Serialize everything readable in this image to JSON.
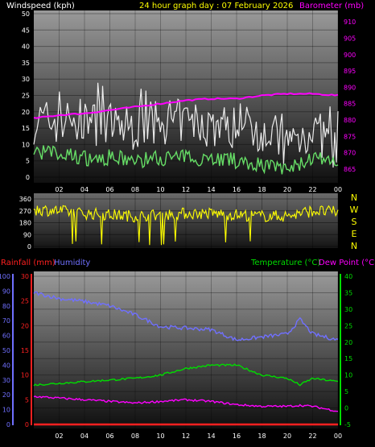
{
  "header": {
    "wind_label": "Windspeed (kph)",
    "title": "24 hour graph day : 07 February 2026",
    "baro_label": "Barometer (mb)"
  },
  "colors": {
    "wind_label": "#ffffff",
    "title": "#ffff00",
    "baro": "#ff00ff",
    "wind_gust": "#ffffff",
    "wind_avg": "#66dd66",
    "direction": "#ffff00",
    "rain": "#ff2020",
    "humidity": "#7070ff",
    "temperature": "#00dd00",
    "dewpoint": "#ff00ff",
    "axis_text": "#ffffff"
  },
  "bottom_header": {
    "rain_label": "Rainfall (mm)",
    "humidity_label": "Humidity",
    "temp_label": "Temperature (°C)",
    "dew_label": "Dew Point (°C)"
  },
  "compass": [
    "N",
    "W",
    "S",
    "E",
    "N"
  ],
  "chart_data": [
    {
      "type": "line",
      "panel": "wind-barometer",
      "x_ticks": [
        "02",
        "04",
        "06",
        "08",
        "10",
        "12",
        "14",
        "16",
        "18",
        "20",
        "22",
        "00"
      ],
      "y_left_ticks": [
        "0",
        "5",
        "10",
        "15",
        "20",
        "25",
        "30",
        "35",
        "40",
        "45",
        "50"
      ],
      "y_left_range": [
        0,
        50
      ],
      "y_right_ticks": [
        "865",
        "870",
        "875",
        "880",
        "885",
        "890",
        "895",
        "900",
        "905",
        "910"
      ],
      "y_right_range": [
        862.5,
        912.5
      ],
      "x": [
        0,
        2,
        4,
        6,
        8,
        10,
        12,
        14,
        16,
        18,
        20,
        22,
        24
      ],
      "series": [
        {
          "key": "barometer",
          "values": [
            880.5,
            881.5,
            882,
            883,
            884,
            885,
            886,
            886.5,
            886.5,
            887.5,
            888,
            888,
            887.5
          ]
        },
        {
          "key": "gust",
          "values": [
            17,
            17,
            17,
            16,
            15,
            17,
            17,
            16,
            15,
            15,
            10,
            15,
            8
          ]
        },
        {
          "key": "average",
          "values": [
            8,
            7,
            6,
            6,
            5,
            6,
            6,
            6,
            5,
            4,
            2,
            6,
            3
          ]
        }
      ]
    },
    {
      "type": "line",
      "panel": "wind-direction",
      "y_ticks": [
        "0",
        "90",
        "180",
        "270",
        "360"
      ],
      "y_range": [
        0,
        360
      ],
      "x": [
        0,
        2,
        4,
        6,
        8,
        10,
        12,
        14,
        16,
        18,
        20,
        22,
        24
      ],
      "series": [
        {
          "key": "direction",
          "values": [
            280,
            270,
            250,
            240,
            230,
            240,
            250,
            250,
            240,
            230,
            230,
            270,
            260
          ]
        }
      ]
    },
    {
      "type": "line",
      "panel": "rain-humidity-temperature",
      "x_ticks": [
        "02",
        "04",
        "06",
        "08",
        "10",
        "12",
        "14",
        "16",
        "18",
        "20",
        "22",
        "00"
      ],
      "humidity_ticks": [
        "0",
        "10",
        "20",
        "30",
        "40",
        "50",
        "60",
        "70",
        "80",
        "90",
        "100"
      ],
      "humidity_range": [
        0,
        100
      ],
      "rain_ticks": [
        "0",
        "5",
        "10",
        "15",
        "20",
        "25",
        "30"
      ],
      "rain_range": [
        0,
        30
      ],
      "temp_ticks": [
        "-5",
        "0",
        "5",
        "10",
        "15",
        "20",
        "25",
        "30",
        "35",
        "40"
      ],
      "temp_range": [
        -5,
        40
      ],
      "x": [
        0,
        2,
        4,
        6,
        8,
        10,
        12,
        14,
        16,
        18,
        20,
        21,
        22,
        24
      ],
      "series": [
        {
          "key": "humidity",
          "values": [
            89,
            85,
            83,
            80,
            74,
            66,
            65,
            64,
            57,
            59,
            61,
            71,
            61,
            57
          ]
        },
        {
          "key": "temperature",
          "values": [
            7,
            7.5,
            8,
            8.5,
            9,
            10,
            12,
            13,
            13,
            10,
            9,
            7,
            9,
            8
          ]
        },
        {
          "key": "dewpoint",
          "values": [
            3.5,
            3,
            2.5,
            2,
            1.5,
            2,
            2.5,
            2,
            1,
            0.5,
            0.5,
            0.8,
            0.5,
            -1
          ]
        },
        {
          "key": "rainfall",
          "values": [
            0,
            0,
            0,
            0,
            0,
            0,
            0,
            0,
            0,
            0,
            0,
            0,
            0,
            0
          ]
        }
      ]
    }
  ]
}
